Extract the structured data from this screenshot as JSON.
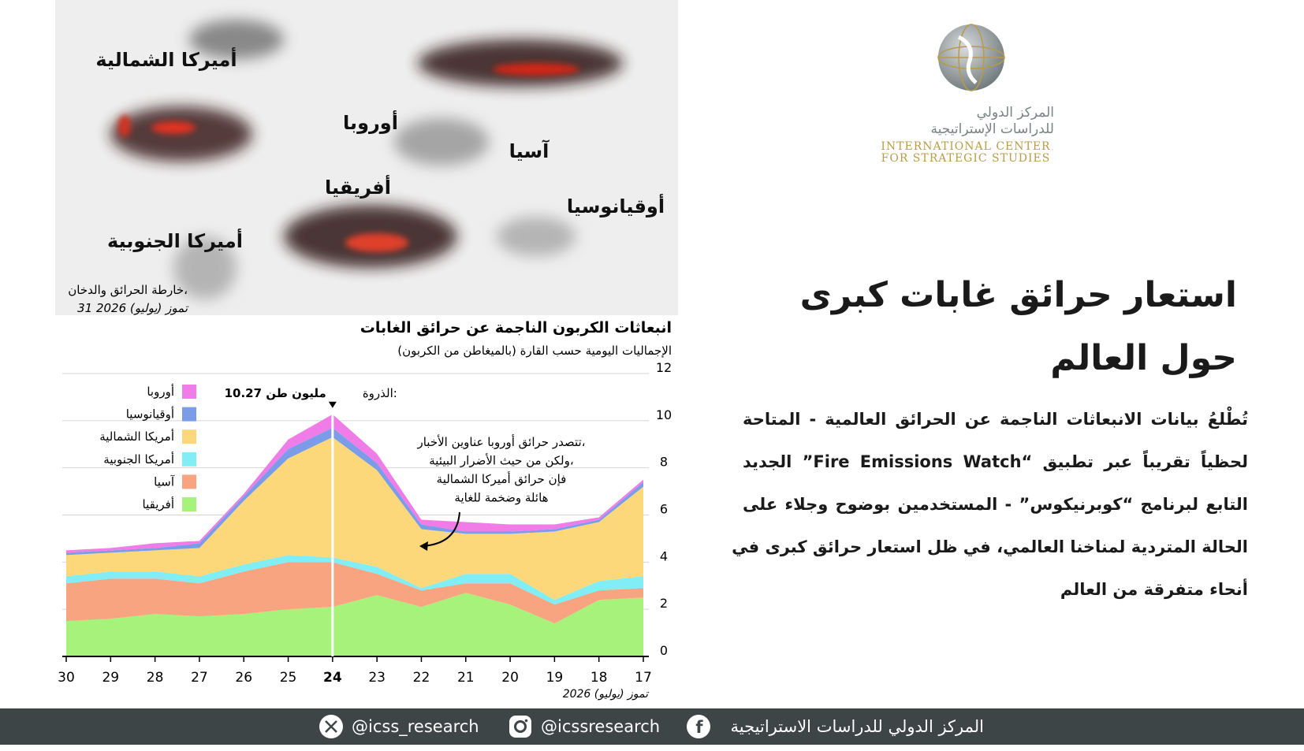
{
  "chart_data": {
    "type": "stacked_area",
    "title": "انبعاثات الكربون الناجمة عن حرائق الغابات",
    "subtitle": "الإجماليات اليومية حسب القارة (بالميغاطن من الكربون)",
    "x_label": "تموز (يوليو) 2026",
    "categories": [
      30,
      29,
      28,
      27,
      26,
      25,
      24,
      23,
      22,
      21,
      20,
      19,
      18,
      17
    ],
    "series": [
      {
        "name": "أفريقيا",
        "color": "#a6f27a",
        "values": [
          1.5,
          1.6,
          1.8,
          1.7,
          1.8,
          2.0,
          2.1,
          2.6,
          2.1,
          2.7,
          2.2,
          1.4,
          2.4,
          2.5
        ]
      },
      {
        "name": "آسيا",
        "color": "#f8a480",
        "values": [
          1.6,
          1.7,
          1.5,
          1.4,
          1.8,
          2.0,
          1.9,
          0.9,
          0.7,
          0.4,
          0.9,
          0.8,
          0.4,
          0.4
        ]
      },
      {
        "name": "أمريكا الجنوبية",
        "color": "#80eef4",
        "values": [
          0.3,
          0.3,
          0.3,
          0.3,
          0.3,
          0.3,
          0.2,
          0.3,
          0.1,
          0.4,
          0.4,
          0.2,
          0.4,
          0.5
        ]
      },
      {
        "name": "أمريكا الشمالية",
        "color": "#fdd87a",
        "values": [
          0.9,
          0.8,
          0.9,
          1.2,
          2.7,
          4.1,
          5.1,
          4.1,
          2.5,
          1.7,
          1.7,
          2.9,
          2.5,
          3.8
        ]
      },
      {
        "name": "أوقيانوسيا",
        "color": "#7b9de8",
        "values": [
          0.1,
          0.1,
          0.1,
          0.2,
          0.2,
          0.4,
          0.4,
          0.3,
          0.2,
          0.1,
          0.1,
          0.1,
          0.1,
          0.2
        ]
      },
      {
        "name": "أوروبا",
        "color": "#f07ce8",
        "values": [
          0.1,
          0.1,
          0.2,
          0.1,
          0.1,
          0.4,
          0.57,
          0.4,
          0.2,
          0.4,
          0.3,
          0.2,
          0.1,
          0.1
        ]
      }
    ],
    "ylim": [
      0,
      12
    ],
    "yticks": [
      0,
      2,
      4,
      6,
      8,
      10,
      12
    ],
    "grid": true,
    "peak": {
      "x": 24,
      "label": "الذروة:",
      "value": 10.27,
      "value_label": "10.27 مليون طن"
    },
    "callout": [
      "تتصدر حرائق أوروبا عناوين الأخبار،",
      "ولكن من حيث الأضرار البيئية،",
      "فإن حرائق أميركا الشمالية",
      "هائلة وضخمة للغاية"
    ]
  },
  "map": {
    "labels": [
      "أميركا الشمالية",
      "أوروبا",
      "آسيا",
      "أفريقيا",
      "أوقيانوسيا",
      "أميركا الجنوبية"
    ],
    "caption": [
      "خارطة الحرائق والدخان،",
      "31 تموز (يوليو) 2026"
    ]
  },
  "logo": {
    "arabic": [
      "المركز الدولي",
      "للدراسات الإستراتيجية"
    ],
    "english": [
      "INTERNATIONAL CENTER",
      "FOR STRATEGIC STUDIES"
    ]
  },
  "article": {
    "title": [
      "استعار حرائق غابات كبرى",
      "حول العالم"
    ],
    "paragraph": [
      "تُطْلعُ بيانات الانبعاثات الناجمة عن الحرائق العالمية - المتاحة",
      "لحظياً تقريباً عبر تطبيق “Fire Emissions Watch” الجديد",
      "التابع لبرنامج “كوبرنيكوس” - المستخدمين بوضوح وجلاء على",
      "الحالة المتردية لمناخنا العالمي، في ظل استعار حرائق كبرى في",
      "أنحاء متفرقة من العالم"
    ]
  },
  "footer": {
    "organization": "المركز الدولي للدراسات الاستراتيجية",
    "instagram": "@icssresearch",
    "x": "@icss_research"
  }
}
